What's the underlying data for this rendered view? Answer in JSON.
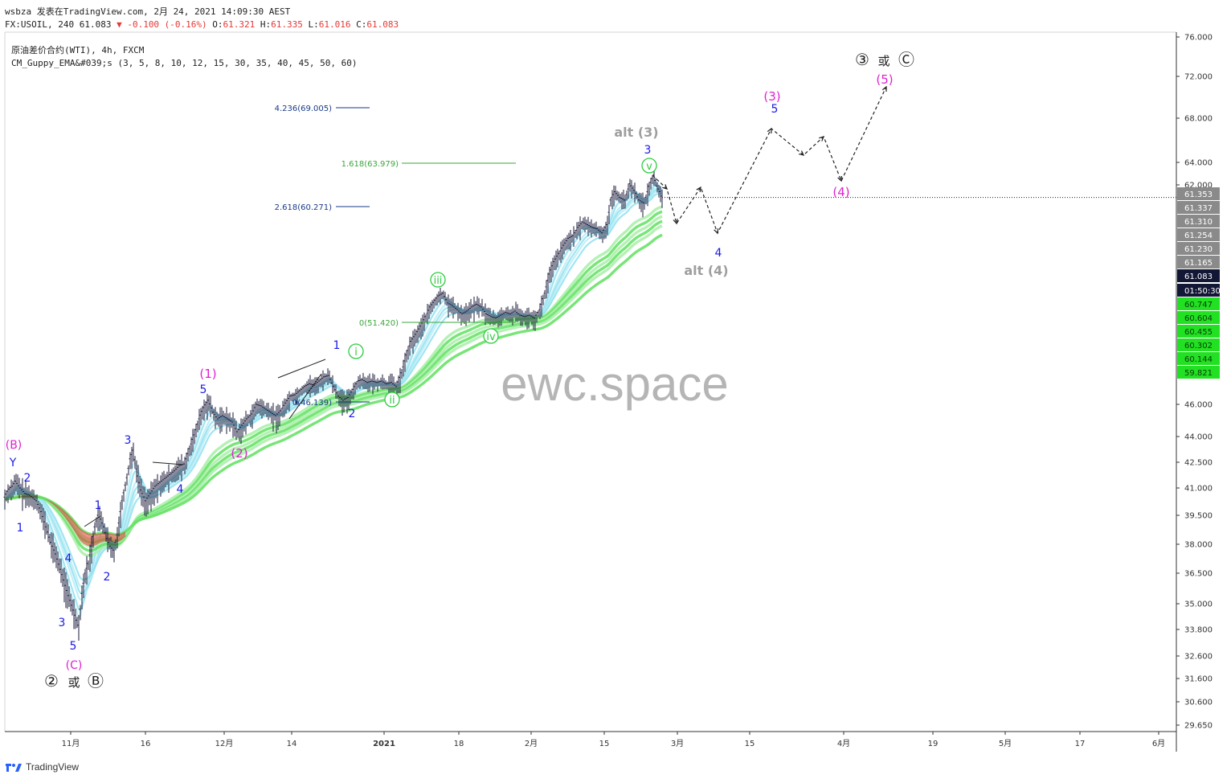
{
  "header": {
    "line1": "wsbza 发表在TradingView.com, 2月 24, 2021 14:09:30 AEST",
    "symbol": "FX:USOIL, 240 61.083",
    "change": "▼ -0.100 (-0.16%)",
    "o_label": "O:",
    "o_value": "61.321",
    "h_label": "H:",
    "h_value": "61.335",
    "l_label": "L:",
    "l_value": "61.016",
    "c_label": "C:",
    "c_value": "61.083"
  },
  "legend": {
    "line1": "原油差价合约(WTI), 4h, FXCM",
    "line2": "CM_Guppy_EMA&#039;s (3, 5, 8, 10, 12, 15, 30, 35, 40, 45, 50, 60)"
  },
  "watermark": "ewc.space",
  "footer": {
    "brand": "TradingView"
  },
  "colors": {
    "wave_blue": "#1a1ae6",
    "wave_magenta": "#e020d0",
    "wave_green": "#2ecc40",
    "wave_gray": "#9e9e9e",
    "fib_blue": "#1a3a8a",
    "fib_green": "#3aa53a",
    "ema_green": "#4fd84f",
    "ema_cyan": "#8fe0f0",
    "ema_red": "#e53935"
  },
  "chart_data": {
    "type": "line",
    "ylim": [
      29.0,
      77.0
    ],
    "y_ticks": [
      "76.000",
      "72.000",
      "68.000",
      "64.000",
      "62.000",
      "46.000",
      "44.000",
      "42.500",
      "41.000",
      "39.500",
      "38.000",
      "36.500",
      "35.000",
      "33.800",
      "32.600",
      "31.600",
      "30.600",
      "29.650"
    ],
    "x_ticks": [
      "11月",
      "16",
      "12月",
      "14",
      "2021",
      "18",
      "2月",
      "15",
      "3月",
      "15",
      "4月",
      "19",
      "5月",
      "17",
      "6月"
    ],
    "price_scale_labels": [
      {
        "text": "61.353",
        "kind": "gray"
      },
      {
        "text": "61.337",
        "kind": "gray"
      },
      {
        "text": "61.310",
        "kind": "gray"
      },
      {
        "text": "61.254",
        "kind": "gray"
      },
      {
        "text": "61.230",
        "kind": "gray"
      },
      {
        "text": "61.165",
        "kind": "gray"
      },
      {
        "text": "61.083",
        "kind": "dark"
      },
      {
        "text": "01:50:30",
        "kind": "dark"
      },
      {
        "text": "60.747",
        "kind": "green"
      },
      {
        "text": "60.604",
        "kind": "green"
      },
      {
        "text": "60.455",
        "kind": "green"
      },
      {
        "text": "60.302",
        "kind": "green"
      },
      {
        "text": "60.144",
        "kind": "green"
      },
      {
        "text": "59.821",
        "kind": "green"
      }
    ],
    "fib_levels": [
      {
        "label": "4.236(69.005)",
        "color": "blue"
      },
      {
        "label": "1.618(63.979)",
        "color": "green"
      },
      {
        "label": "2.618(60.271)",
        "color": "blue"
      },
      {
        "label": "0(51.420)",
        "color": "green"
      },
      {
        "label": "0(46.139)",
        "color": "blue"
      }
    ],
    "price_path": [
      [
        0,
        40.4
      ],
      [
        5,
        40.8
      ],
      [
        10,
        41.0
      ],
      [
        14,
        41.3
      ],
      [
        20,
        40.9
      ],
      [
        26,
        40.6
      ],
      [
        32,
        40.5
      ],
      [
        40,
        40.2
      ],
      [
        46,
        39.6
      ],
      [
        52,
        38.8
      ],
      [
        58,
        38.0
      ],
      [
        64,
        37.4
      ],
      [
        70,
        36.6
      ],
      [
        76,
        35.8
      ],
      [
        80,
        35.3
      ],
      [
        86,
        34.6
      ],
      [
        92,
        33.9
      ],
      [
        96,
        35.4
      ],
      [
        100,
        36.4
      ],
      [
        104,
        36.9
      ],
      [
        108,
        37.8
      ],
      [
        112,
        38.8
      ],
      [
        116,
        39.4
      ],
      [
        120,
        39.2
      ],
      [
        124,
        38.8
      ],
      [
        128,
        38.2
      ],
      [
        132,
        37.8
      ],
      [
        136,
        37.6
      ],
      [
        140,
        38.4
      ],
      [
        146,
        40.2
      ],
      [
        152,
        41.5
      ],
      [
        156,
        42.6
      ],
      [
        160,
        43.1
      ],
      [
        164,
        42.0
      ],
      [
        170,
        40.8
      ],
      [
        176,
        40.2
      ],
      [
        182,
        40.6
      ],
      [
        188,
        41.0
      ],
      [
        196,
        41.3
      ],
      [
        204,
        41.6
      ],
      [
        212,
        41.9
      ],
      [
        218,
        42.2
      ],
      [
        224,
        42.3
      ],
      [
        230,
        43.2
      ],
      [
        236,
        44.0
      ],
      [
        242,
        45.0
      ],
      [
        248,
        45.7
      ],
      [
        254,
        46.2
      ],
      [
        260,
        45.4
      ],
      [
        266,
        45.0
      ],
      [
        272,
        45.2
      ],
      [
        278,
        45.0
      ],
      [
        284,
        44.8
      ],
      [
        290,
        44.2
      ],
      [
        296,
        44.6
      ],
      [
        302,
        45.0
      ],
      [
        308,
        45.3
      ],
      [
        314,
        45.9
      ],
      [
        320,
        45.8
      ],
      [
        326,
        45.6
      ],
      [
        332,
        45.4
      ],
      [
        338,
        45.2
      ],
      [
        344,
        45.5
      ],
      [
        350,
        46.0
      ],
      [
        356,
        46.5
      ],
      [
        362,
        46.6
      ],
      [
        368,
        46.9
      ],
      [
        374,
        47.2
      ],
      [
        380,
        47.4
      ],
      [
        386,
        47.3
      ],
      [
        392,
        47.6
      ],
      [
        398,
        47.9
      ],
      [
        404,
        48.0
      ],
      [
        410,
        47.2
      ],
      [
        416,
        46.5
      ],
      [
        422,
        46.2
      ],
      [
        428,
        46.4
      ],
      [
        434,
        47.0
      ],
      [
        440,
        47.6
      ],
      [
        446,
        47.7
      ],
      [
        452,
        47.5
      ],
      [
        458,
        47.6
      ],
      [
        464,
        47.5
      ],
      [
        470,
        47.6
      ],
      [
        476,
        47.4
      ],
      [
        482,
        47.5
      ],
      [
        488,
        47.2
      ],
      [
        494,
        48.2
      ],
      [
        500,
        49.5
      ],
      [
        506,
        50.5
      ],
      [
        512,
        51.0
      ],
      [
        518,
        51.6
      ],
      [
        524,
        52.3
      ],
      [
        530,
        53.0
      ],
      [
        536,
        53.5
      ],
      [
        540,
        53.8
      ],
      [
        546,
        54.0
      ],
      [
        552,
        53.3
      ],
      [
        558,
        53.1
      ],
      [
        564,
        52.8
      ],
      [
        570,
        52.5
      ],
      [
        576,
        52.7
      ],
      [
        582,
        53.0
      ],
      [
        588,
        53.2
      ],
      [
        594,
        53.0
      ],
      [
        600,
        52.5
      ],
      [
        606,
        52.3
      ],
      [
        612,
        52.2
      ],
      [
        618,
        52.4
      ],
      [
        624,
        52.6
      ],
      [
        630,
        52.5
      ],
      [
        636,
        52.7
      ],
      [
        642,
        52.4
      ],
      [
        648,
        52.3
      ],
      [
        654,
        52.4
      ],
      [
        660,
        52.2
      ],
      [
        666,
        52.8
      ],
      [
        672,
        54.0
      ],
      [
        678,
        55.4
      ],
      [
        684,
        56.3
      ],
      [
        690,
        56.9
      ],
      [
        696,
        57.5
      ],
      [
        702,
        58.0
      ],
      [
        708,
        58.2
      ],
      [
        714,
        58.8
      ],
      [
        720,
        59.2
      ],
      [
        726,
        59.0
      ],
      [
        732,
        58.8
      ],
      [
        738,
        58.7
      ],
      [
        744,
        58.4
      ],
      [
        750,
        59.0
      ],
      [
        754,
        60.8
      ],
      [
        760,
        61.4
      ],
      [
        766,
        61.0
      ],
      [
        772,
        60.8
      ],
      [
        778,
        62.0
      ],
      [
        784,
        61.5
      ],
      [
        790,
        60.8
      ],
      [
        796,
        60.6
      ],
      [
        802,
        61.8
      ],
      [
        808,
        62.8
      ],
      [
        812,
        61.8
      ],
      [
        816,
        61.4
      ],
      [
        818,
        61.083
      ]
    ],
    "wave_labels": [
      {
        "text": "(B)",
        "color": "magenta"
      },
      {
        "text": "Y",
        "color": "blue"
      },
      {
        "text": "2",
        "color": "blue"
      },
      {
        "text": "1",
        "color": "blue"
      },
      {
        "text": "4",
        "color": "blue"
      },
      {
        "text": "3",
        "color": "blue"
      },
      {
        "text": "5",
        "color": "blue"
      },
      {
        "text": "(C)",
        "color": "magenta"
      },
      {
        "text": "1",
        "color": "blue"
      },
      {
        "text": "2",
        "color": "blue"
      },
      {
        "text": "3",
        "color": "blue"
      },
      {
        "text": "4",
        "color": "blue"
      },
      {
        "text": "(1)",
        "color": "magenta"
      },
      {
        "text": "5",
        "color": "blue"
      },
      {
        "text": "(2)",
        "color": "magenta"
      },
      {
        "text": "1",
        "color": "blue"
      },
      {
        "text": "2",
        "color": "blue"
      },
      {
        "text": "i",
        "color": "green"
      },
      {
        "text": "ii",
        "color": "green"
      },
      {
        "text": "iii",
        "color": "green"
      },
      {
        "text": "iv",
        "color": "green"
      },
      {
        "text": "v",
        "color": "green"
      },
      {
        "text": "3",
        "color": "blue"
      },
      {
        "text": "alt (3)",
        "color": "gray"
      },
      {
        "text": "4",
        "color": "blue"
      },
      {
        "text": "alt (4)",
        "color": "gray"
      },
      {
        "text": "(3)",
        "color": "magenta"
      },
      {
        "text": "5",
        "color": "blue"
      },
      {
        "text": "(4)",
        "color": "magenta"
      },
      {
        "text": "(5)",
        "color": "magenta"
      },
      {
        "text": "②",
        "color": "black"
      },
      {
        "text": "或",
        "color": "black"
      },
      {
        "text": "Ⓑ",
        "color": "black"
      },
      {
        "text": "③",
        "color": "black"
      },
      {
        "text": "或",
        "color": "black"
      },
      {
        "text": "Ⓒ",
        "color": "black"
      }
    ]
  }
}
